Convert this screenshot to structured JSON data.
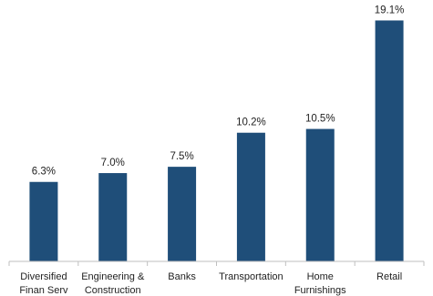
{
  "chart_data": {
    "type": "bar",
    "title": "",
    "xlabel": "",
    "ylabel": "",
    "categories": [
      [
        "Diversified",
        "Finan Serv"
      ],
      [
        "Engineering &",
        "Construction"
      ],
      [
        "Banks"
      ],
      [
        "Transportation"
      ],
      [
        "Home",
        "Furnishings"
      ],
      [
        "Retail"
      ]
    ],
    "values": [
      6.3,
      7.0,
      7.5,
      10.2,
      10.5,
      19.1
    ],
    "data_labels": [
      "6.3%",
      "7.0%",
      "7.5%",
      "10.2%",
      "10.5%",
      "19.1%"
    ],
    "ylim": [
      0,
      20
    ],
    "grid": false,
    "bar_color": "#1f4e79",
    "axis_color": "#bfbfbf"
  }
}
